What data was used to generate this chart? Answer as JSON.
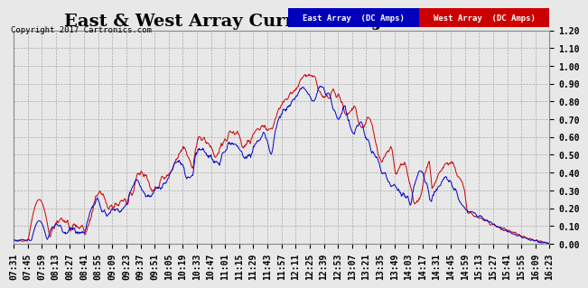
{
  "title": "East & West Array Current Tue Jan 24 16:34",
  "copyright_text": "Copyright 2017 Cartronics.com",
  "legend_east": "East Array  (DC Amps)",
  "legend_west": "West Array  (DC Amps)",
  "east_color": "#0000cc",
  "west_color": "#cc0000",
  "legend_east_bg": "#0000bb",
  "legend_west_bg": "#cc0000",
  "ylim": [
    0.0,
    1.2
  ],
  "yticks": [
    0.0,
    0.1,
    0.2,
    0.3,
    0.4,
    0.5,
    0.6,
    0.7,
    0.8,
    0.9,
    1.0,
    1.1,
    1.2
  ],
  "bg_color": "#e8e8e8",
  "plot_bg_color": "#e8e8e8",
  "grid_color": "#aaaaaa",
  "title_fontsize": 14,
  "tick_fontsize": 7,
  "x_labels": [
    "07:31",
    "07:45",
    "07:59",
    "08:13",
    "08:27",
    "08:41",
    "08:55",
    "09:09",
    "09:23",
    "09:37",
    "09:51",
    "10:05",
    "10:19",
    "10:33",
    "10:47",
    "11:01",
    "11:15",
    "11:29",
    "11:43",
    "11:57",
    "12:11",
    "12:25",
    "12:39",
    "12:53",
    "13:07",
    "13:21",
    "13:35",
    "13:49",
    "14:03",
    "14:17",
    "14:31",
    "14:45",
    "14:59",
    "15:13",
    "15:27",
    "15:41",
    "15:55",
    "16:09",
    "16:23"
  ]
}
